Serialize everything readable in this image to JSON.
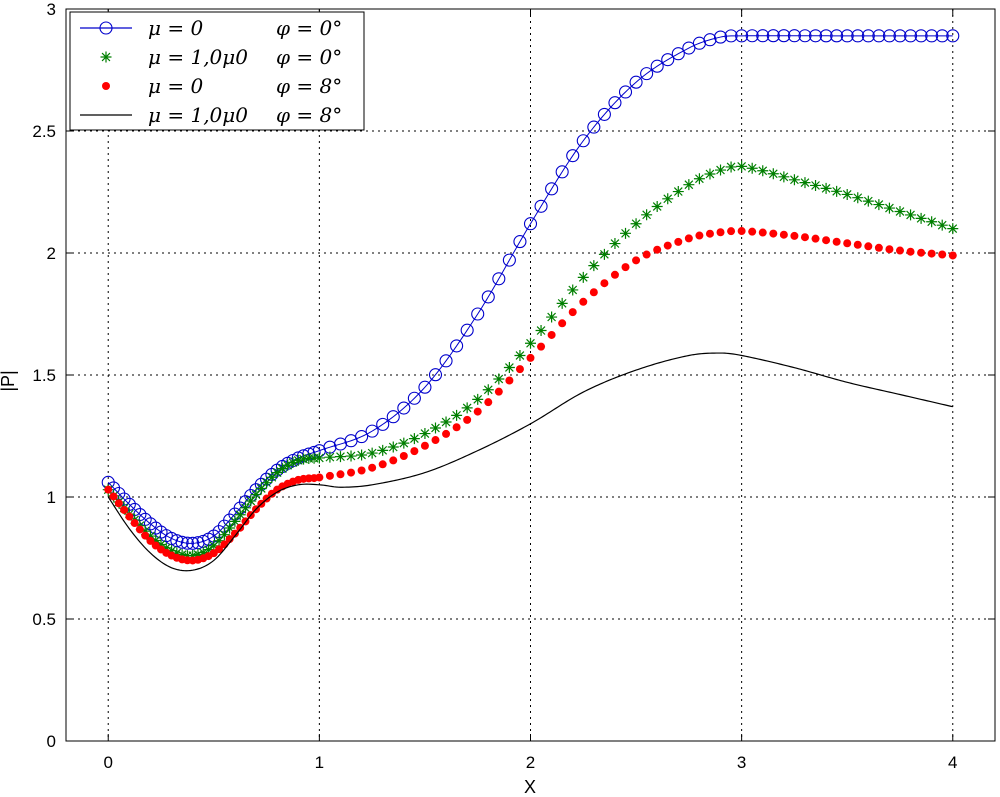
{
  "chart_data": {
    "type": "line",
    "title": "",
    "xlabel": "X",
    "ylabel": "|P|",
    "xlim": [
      -0.2,
      4.2
    ],
    "ylim": [
      0,
      3
    ],
    "grid": true,
    "legend_position": "top-left",
    "xticks": [
      "0",
      "1",
      "2",
      "3",
      "4"
    ],
    "yticks": [
      "0",
      "0.5",
      "1",
      "1.5",
      "2",
      "2.5",
      "3"
    ],
    "series": [
      {
        "name": "μ = 0    φ = 0°",
        "legend_left": "μ = 0",
        "legend_right": "φ = 0°",
        "marker": "circle",
        "color": "#0000cc",
        "x": [
          0,
          0.1,
          0.2,
          0.3,
          0.4,
          0.5,
          0.6,
          0.7,
          0.8,
          0.9,
          1.0,
          1.25,
          1.5,
          1.75,
          2.0,
          2.25,
          2.5,
          2.75,
          2.9,
          3.0,
          3.5,
          4.0
        ],
        "y": [
          1.06,
          0.97,
          0.89,
          0.83,
          0.81,
          0.84,
          0.93,
          1.03,
          1.11,
          1.16,
          1.19,
          1.27,
          1.45,
          1.75,
          2.12,
          2.46,
          2.7,
          2.84,
          2.885,
          2.89,
          2.89,
          2.89
        ]
      },
      {
        "name": "μ = 1,0μ0    φ = 0°",
        "legend_left": "μ = 1,0μ0",
        "legend_right": "φ = 0°",
        "marker": "star",
        "color": "#007f00",
        "x": [
          0,
          0.1,
          0.2,
          0.3,
          0.4,
          0.5,
          0.6,
          0.7,
          0.8,
          0.9,
          1.0,
          1.25,
          1.5,
          1.75,
          2.0,
          2.25,
          2.5,
          2.75,
          2.9,
          3.0,
          3.25,
          3.5,
          3.75,
          4.0
        ],
        "y": [
          1.03,
          0.93,
          0.84,
          0.78,
          0.76,
          0.8,
          0.9,
          1.01,
          1.1,
          1.15,
          1.16,
          1.18,
          1.26,
          1.4,
          1.63,
          1.9,
          2.12,
          2.28,
          2.34,
          2.355,
          2.3,
          2.24,
          2.17,
          2.1
        ]
      },
      {
        "name": "μ = 0    φ = 8°",
        "legend_left": "μ = 0",
        "legend_right": "φ = 8°",
        "marker": "dot",
        "color": "#ff0000",
        "x": [
          0,
          0.1,
          0.2,
          0.3,
          0.4,
          0.5,
          0.6,
          0.7,
          0.8,
          0.9,
          1.0,
          1.25,
          1.5,
          1.75,
          2.0,
          2.25,
          2.5,
          2.75,
          2.9,
          3.0,
          3.25,
          3.5,
          3.75,
          4.0
        ],
        "y": [
          1.03,
          0.92,
          0.82,
          0.76,
          0.74,
          0.77,
          0.85,
          0.95,
          1.03,
          1.07,
          1.08,
          1.12,
          1.21,
          1.35,
          1.57,
          1.8,
          1.97,
          2.06,
          2.085,
          2.09,
          2.07,
          2.04,
          2.01,
          1.99
        ]
      },
      {
        "name": "μ = 1,0μ0    φ = 8°",
        "legend_left": "μ = 1,0μ0",
        "legend_right": "φ = 8°",
        "marker": "line",
        "color": "#000000",
        "x": [
          0,
          0.1,
          0.2,
          0.3,
          0.4,
          0.5,
          0.6,
          0.7,
          0.8,
          0.9,
          1.0,
          1.1,
          1.25,
          1.5,
          1.75,
          2.0,
          2.25,
          2.5,
          2.75,
          2.9,
          3.0,
          3.25,
          3.5,
          3.75,
          4.0
        ],
        "y": [
          1.0,
          0.87,
          0.77,
          0.71,
          0.7,
          0.74,
          0.84,
          0.95,
          1.02,
          1.05,
          1.05,
          1.04,
          1.05,
          1.1,
          1.19,
          1.3,
          1.43,
          1.52,
          1.58,
          1.59,
          1.58,
          1.53,
          1.47,
          1.42,
          1.37
        ]
      }
    ]
  }
}
